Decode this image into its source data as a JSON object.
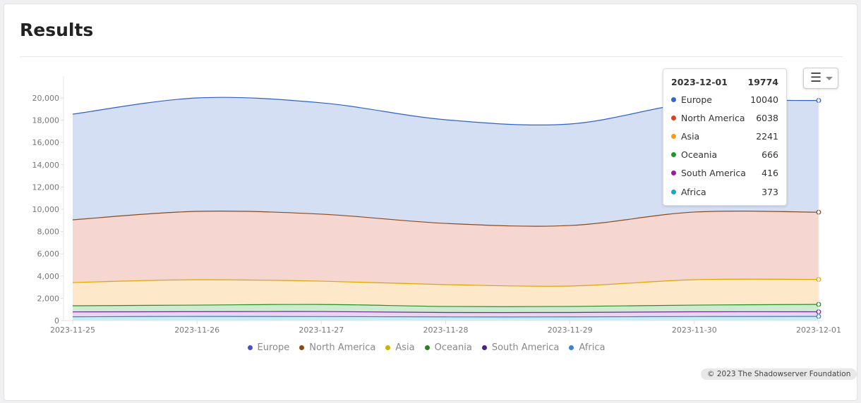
{
  "page": {
    "title": "Results"
  },
  "menu_icon": "hamburger-menu-icon",
  "credit": "© 2023 The Shadowserver Foundation",
  "tooltip": {
    "date": "2023-12-01",
    "total": "19774",
    "rows": [
      {
        "name": "Europe",
        "value": "10040",
        "color": "#2f67d1"
      },
      {
        "name": "North America",
        "value": "6038",
        "color": "#df3f1c"
      },
      {
        "name": "Asia",
        "value": "2241",
        "color": "#f59c14"
      },
      {
        "name": "Oceania",
        "value": "666",
        "color": "#1a9b1e"
      },
      {
        "name": "South America",
        "value": "416",
        "color": "#a0169a"
      },
      {
        "name": "Africa",
        "value": "373",
        "color": "#1aa6c8"
      }
    ]
  },
  "chart_data": {
    "type": "area",
    "stacked": true,
    "x": [
      "2023-11-25",
      "2023-11-26",
      "2023-11-27",
      "2023-11-28",
      "2023-11-29",
      "2023-11-30",
      "2023-12-01"
    ],
    "ylim": [
      0,
      20000
    ],
    "yticks": [
      "0",
      "2,000",
      "4,000",
      "6,000",
      "8,000",
      "10,000",
      "12,000",
      "14,000",
      "16,000",
      "18,000",
      "20,000"
    ],
    "grid": false,
    "legend": "bottom",
    "series": [
      {
        "name": "Europe",
        "values": [
          9490,
          10190,
          10000,
          9310,
          9120,
          9810,
          10040
        ],
        "line": "#2f62c6",
        "fill": "#d5dff4",
        "legend_color": "#4a4fcf"
      },
      {
        "name": "North America",
        "values": [
          5630,
          6140,
          6020,
          5500,
          5440,
          6080,
          6038
        ],
        "line": "#8a4a22",
        "fill": "#f6d6d0",
        "legend_color": "#8b4a14"
      },
      {
        "name": "Asia",
        "values": [
          2090,
          2280,
          2090,
          1960,
          1830,
          2280,
          2241
        ],
        "line": "#e0a500",
        "fill": "#fde8c9",
        "legend_color": "#c8b400"
      },
      {
        "name": "Oceania",
        "values": [
          550,
          590,
          640,
          540,
          540,
          600,
          666
        ],
        "line": "#2e8a2a",
        "fill": "#cdebcf",
        "legend_color": "#2e7d1f"
      },
      {
        "name": "South America",
        "values": [
          440,
          430,
          450,
          400,
          400,
          430,
          416
        ],
        "line": "#6b2d92",
        "fill": "#ead4f0",
        "legend_color": "#4b1f8f"
      },
      {
        "name": "Africa",
        "values": [
          340,
          370,
          360,
          330,
          330,
          360,
          373
        ],
        "line": "#3a7fd0",
        "fill": "#c7eef7",
        "legend_color": "#3b82d6"
      }
    ]
  }
}
